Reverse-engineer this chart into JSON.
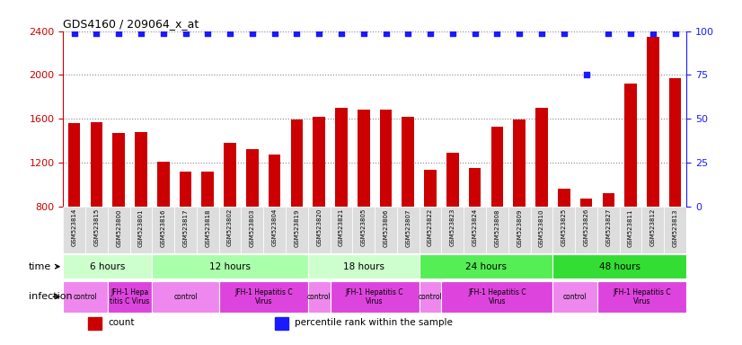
{
  "title": "GDS4160 / 209064_x_at",
  "samples": [
    "GSM523814",
    "GSM523815",
    "GSM523800",
    "GSM523801",
    "GSM523816",
    "GSM523817",
    "GSM523818",
    "GSM523802",
    "GSM523803",
    "GSM523804",
    "GSM523819",
    "GSM523820",
    "GSM523821",
    "GSM523805",
    "GSM523806",
    "GSM523807",
    "GSM523822",
    "GSM523823",
    "GSM523824",
    "GSM523808",
    "GSM523809",
    "GSM523810",
    "GSM523825",
    "GSM523826",
    "GSM523827",
    "GSM523811",
    "GSM523812",
    "GSM523813"
  ],
  "counts": [
    1560,
    1565,
    1470,
    1480,
    1210,
    1120,
    1115,
    1380,
    1320,
    1270,
    1590,
    1620,
    1700,
    1680,
    1680,
    1620,
    1130,
    1290,
    1150,
    1530,
    1590,
    1700,
    960,
    870,
    920,
    1920,
    2350,
    1970
  ],
  "percentiles": [
    99,
    99,
    99,
    99,
    99,
    99,
    99,
    99,
    99,
    99,
    99,
    99,
    99,
    99,
    99,
    99,
    99,
    99,
    99,
    99,
    99,
    99,
    99,
    75,
    99,
    99,
    99,
    99
  ],
  "bar_color": "#cc0000",
  "dot_color": "#1a1aff",
  "ylim": [
    800,
    2400
  ],
  "yticks": [
    800,
    1200,
    1600,
    2000,
    2400
  ],
  "right_yticks": [
    0,
    25,
    50,
    75,
    100
  ],
  "right_ylim": [
    0,
    100
  ],
  "time_groups": [
    {
      "label": "6 hours",
      "start": 0,
      "end": 4,
      "color": "#ccffcc"
    },
    {
      "label": "12 hours",
      "start": 4,
      "end": 11,
      "color": "#aaffaa"
    },
    {
      "label": "18 hours",
      "start": 11,
      "end": 16,
      "color": "#ccffcc"
    },
    {
      "label": "24 hours",
      "start": 16,
      "end": 22,
      "color": "#55ee55"
    },
    {
      "label": "48 hours",
      "start": 22,
      "end": 28,
      "color": "#33dd33"
    }
  ],
  "infection_groups": [
    {
      "label": "control",
      "start": 0,
      "end": 2,
      "color": "#ee88ee"
    },
    {
      "label": "JFH-1 Hepa\ntitis C Virus",
      "start": 2,
      "end": 4,
      "color": "#dd44dd"
    },
    {
      "label": "control",
      "start": 4,
      "end": 7,
      "color": "#ee88ee"
    },
    {
      "label": "JFH-1 Hepatitis C\nVirus",
      "start": 7,
      "end": 11,
      "color": "#dd44dd"
    },
    {
      "label": "control",
      "start": 11,
      "end": 12,
      "color": "#ee88ee"
    },
    {
      "label": "JFH-1 Hepatitis C\nVirus",
      "start": 12,
      "end": 16,
      "color": "#dd44dd"
    },
    {
      "label": "control",
      "start": 16,
      "end": 17,
      "color": "#ee88ee"
    },
    {
      "label": "JFH-1 Hepatitis C\nVirus",
      "start": 17,
      "end": 22,
      "color": "#dd44dd"
    },
    {
      "label": "control",
      "start": 22,
      "end": 24,
      "color": "#ee88ee"
    },
    {
      "label": "JFH-1 Hepatitis C\nVirus",
      "start": 24,
      "end": 28,
      "color": "#dd44dd"
    }
  ],
  "bg_color": "#ffffff",
  "grid_color": "#888888",
  "axis_color_left": "#cc0000",
  "axis_color_right": "#1a1aff",
  "xticklabel_bg": "#dddddd"
}
